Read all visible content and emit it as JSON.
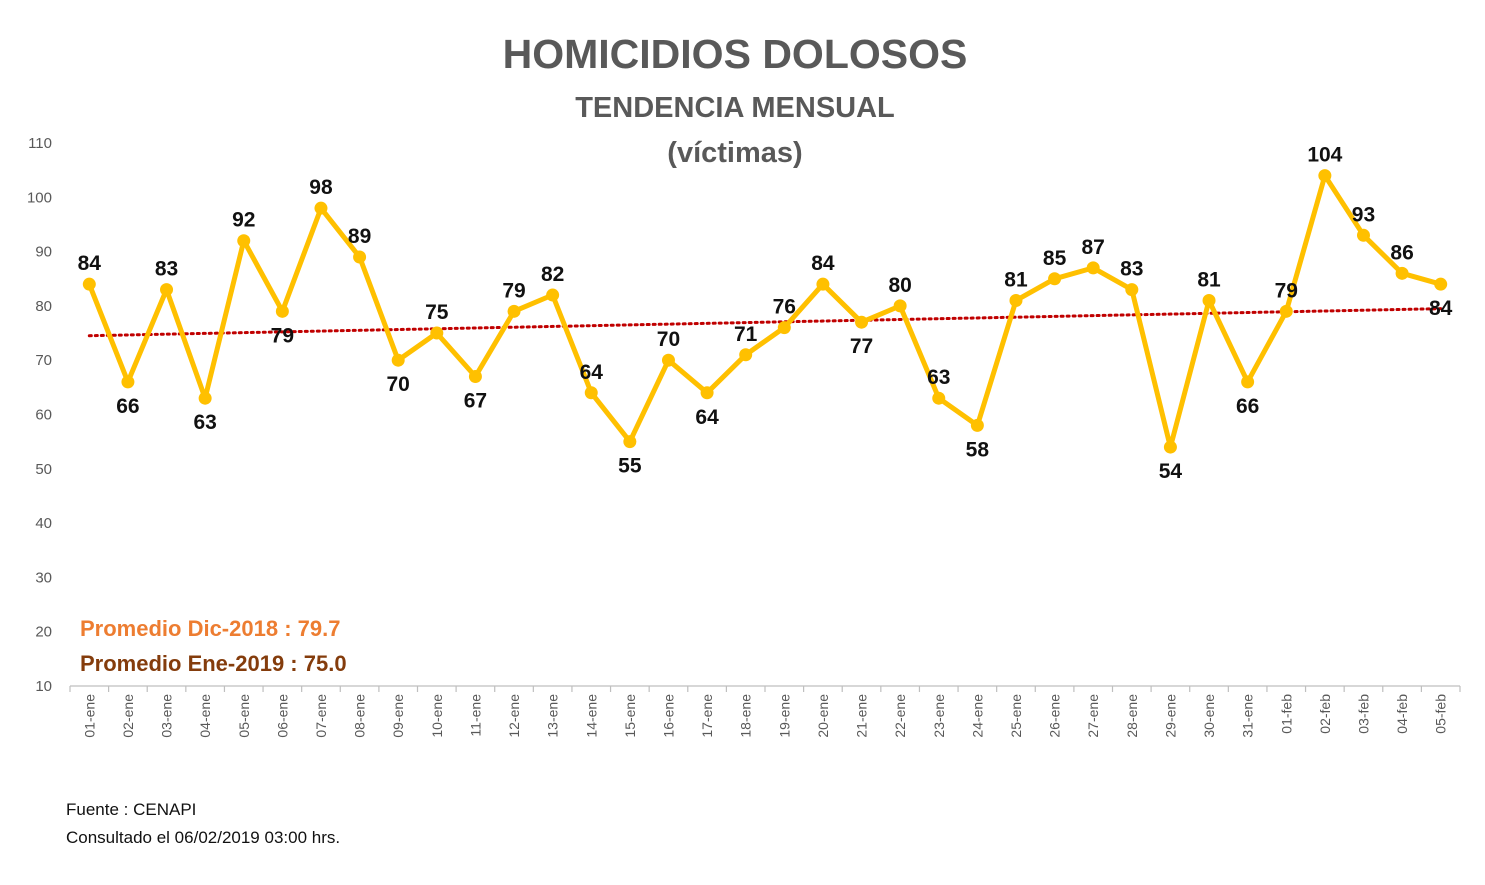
{
  "colors": {
    "line": "#FFC000",
    "trend": "#C00000",
    "title": "#595959",
    "axis": "#BFBFBF",
    "note1": "#ED7D31",
    "note2": "#843C0C"
  },
  "notes": {
    "avg_dec": "Promedio Dic-2018  : 79.7",
    "avg_jan": "Promedio Ene-2019 : 75.0"
  },
  "footer": {
    "source": "Fuente : CENAPI",
    "consulted": "Consultado el 06/02/2019  03:00 hrs."
  },
  "chart_data": {
    "type": "line",
    "title": "HOMICIDIOS DOLOSOS",
    "subtitle_1": "TENDENCIA MENSUAL",
    "subtitle_2": "(víctimas)",
    "categories": [
      "01-ene",
      "02-ene",
      "03-ene",
      "04-ene",
      "05-ene",
      "06-ene",
      "07-ene",
      "08-ene",
      "09-ene",
      "10-ene",
      "11-ene",
      "12-ene",
      "13-ene",
      "14-ene",
      "15-ene",
      "16-ene",
      "17-ene",
      "18-ene",
      "19-ene",
      "20-ene",
      "21-ene",
      "22-ene",
      "23-ene",
      "24-ene",
      "25-ene",
      "26-ene",
      "27-ene",
      "28-ene",
      "29-ene",
      "30-ene",
      "31-ene",
      "01-feb",
      "02-feb",
      "03-feb",
      "04-feb",
      "05-feb"
    ],
    "series": [
      {
        "values": [
          84,
          66,
          83,
          63,
          92,
          79,
          98,
          89,
          70,
          75,
          67,
          79,
          82,
          64,
          55,
          70,
          64,
          71,
          76,
          84,
          77,
          80,
          63,
          58,
          81,
          85,
          87,
          83,
          54,
          81,
          66,
          79,
          104,
          93,
          86,
          84
        ]
      }
    ],
    "trendline": {
      "type": "linear",
      "style": "dotted"
    },
    "yticks": [
      10,
      20,
      30,
      40,
      50,
      60,
      70,
      80,
      90,
      100,
      110
    ],
    "ylim": [
      10,
      110
    ],
    "grid": false,
    "legend": "none"
  }
}
